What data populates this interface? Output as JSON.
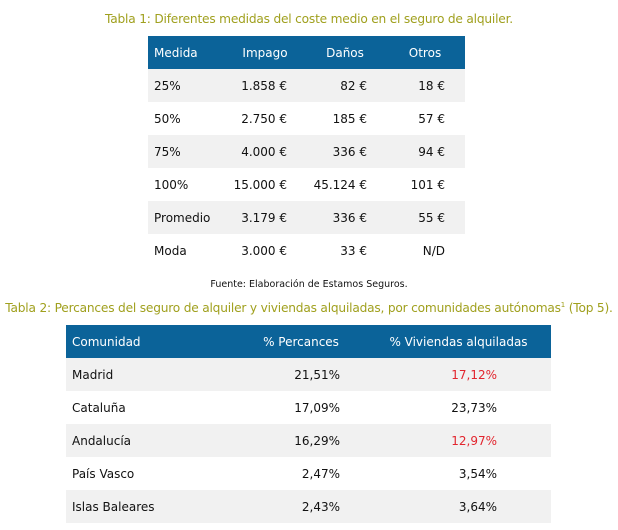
{
  "table1": {
    "caption": "Tabla 1: Diferentes medidas del coste medio en el seguro de alquiler.",
    "headers": [
      "Medida",
      "Impago",
      "Daños",
      "Otros"
    ],
    "rows": [
      [
        "25%",
        "1.858 €",
        "82 €",
        "18 €"
      ],
      [
        "50%",
        "2.750 €",
        "185 €",
        "57 €"
      ],
      [
        "75%",
        "4.000 €",
        "336 €",
        "94 €"
      ],
      [
        "100%",
        "15.000 €",
        "45.124 €",
        "101 €"
      ],
      [
        "Promedio",
        "3.179 €",
        "336 €",
        "55 €"
      ],
      [
        "Moda",
        "3.000 €",
        "33 €",
        "N/D"
      ]
    ],
    "source": "Fuente: Elaboración de Estamos Seguros."
  },
  "table2": {
    "caption": "Tabla 2: Percances del seguro de alquiler y viviendas alquiladas, por comunidades autónomas",
    "caption_sup": "1",
    "caption_end": " (Top 5).",
    "headers": [
      "Comunidad",
      "% Percances",
      "% Viviendas alquiladas"
    ],
    "rows": [
      [
        "Madrid",
        "21,51%",
        "17,12%"
      ],
      [
        "Cataluña",
        "17,09%",
        "23,73%"
      ],
      [
        "Andalucía",
        "16,29%",
        "12,97%"
      ],
      [
        "País Vasco",
        "2,47%",
        "3,54%"
      ],
      [
        "Islas Baleares",
        "2,43%",
        "3,64%"
      ]
    ],
    "highlight_color": "#e2252e",
    "header_color": "#0b6399"
  }
}
